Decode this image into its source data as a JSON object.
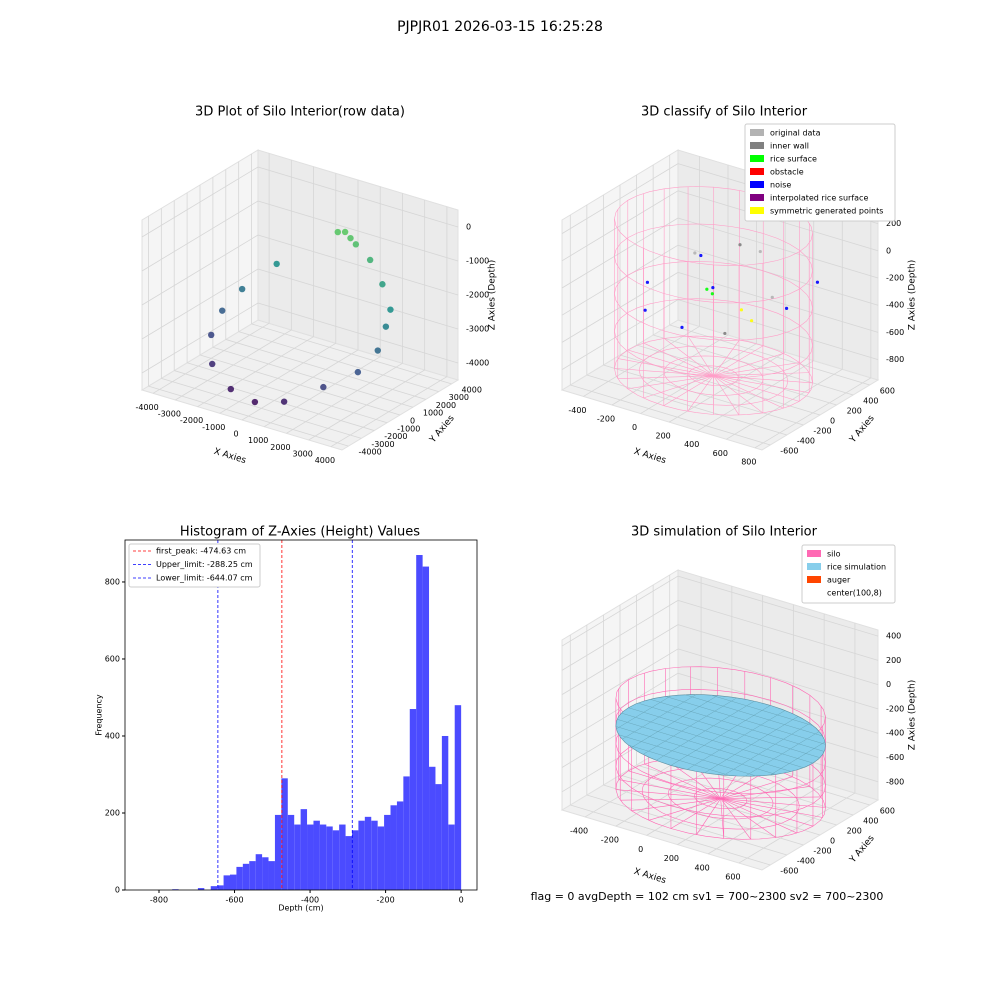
{
  "title": "PJPJR01 2026-03-15 16:25:28",
  "footer": "flag = 0     avgDepth = 102 cm  sv1 = 700~2300  sv2 = 700~2300",
  "chart_data": [
    {
      "type": "scatter3d",
      "title": "3D Plot of Silo Interior(row data)",
      "colormap": "viridis",
      "xlabel": "X Axies",
      "ylabel": "Y Axies",
      "zlabel": "Z Axies (Depth)",
      "xlim": [
        -4500,
        4500
      ],
      "ylim": [
        -4500,
        4500
      ],
      "zlim": [
        -4500,
        500
      ],
      "xticks": [
        -4000,
        -3000,
        -2000,
        -1000,
        0,
        1000,
        2000,
        3000,
        4000
      ],
      "yticks": [
        -4000,
        -3000,
        -2000,
        -1000,
        0,
        1000,
        2000,
        3000,
        4000
      ],
      "zticks": [
        -4000,
        -3000,
        -2000,
        -1000,
        0
      ],
      "series": [
        {
          "x": [
            0,
            300,
            -300,
            600,
            -2500,
            -3300,
            -3500,
            -3300,
            -2500,
            -1200,
            0,
            1200,
            2500,
            3300,
            3500,
            3400,
            3200,
            2200,
            1300
          ],
          "y": [
            3500,
            3400,
            3450,
            3300,
            2500,
            1200,
            0,
            -1200,
            -2500,
            -3300,
            -3500,
            -3300,
            -2500,
            -1200,
            0,
            800,
            1500,
            2600,
            3200
          ],
          "z": [
            -800,
            -900,
            -850,
            -1000,
            -2000,
            -2600,
            -3000,
            -3400,
            -3800,
            -4100,
            -4200,
            -4000,
            -3500,
            -3200,
            -2800,
            -2300,
            -2000,
            -1700,
            -1300
          ]
        }
      ]
    },
    {
      "type": "scatter3d",
      "title": "3D classify of Silo Interior",
      "xlabel": "X Axies",
      "ylabel": "Y Axies",
      "zlabel": "Z Axies (Depth)",
      "xlim": [
        -550,
        850
      ],
      "ylim": [
        -700,
        700
      ],
      "zlim": [
        -950,
        300
      ],
      "xticks": [
        -400,
        -200,
        0,
        200,
        400,
        600,
        800
      ],
      "yticks": [
        -600,
        -400,
        -200,
        0,
        200,
        400,
        600
      ],
      "zticks": [
        -800,
        -600,
        -400,
        -200,
        0,
        200
      ],
      "cylinder": {
        "color": "#ff9ec8",
        "center": [
          100,
          8
        ],
        "radius": 600,
        "zrange": [
          -900,
          200
        ]
      },
      "series": [
        {
          "name": "original data",
          "color": "#b3b3b3",
          "x": [
            -200,
            200,
            400
          ],
          "y": [
            300,
            400,
            200
          ],
          "z": [
            -200,
            -100,
            -300
          ]
        },
        {
          "name": "inner wall",
          "color": "#808080",
          "x": [
            0,
            300
          ],
          "y": [
            500,
            -200
          ],
          "z": [
            -150,
            -450
          ]
        },
        {
          "name": "rice surface",
          "color": "#00ff00",
          "x": [
            0,
            50
          ],
          "y": [
            100,
            80
          ],
          "z": [
            -330,
            -340
          ]
        },
        {
          "name": "obstacle",
          "color": "#ff0000",
          "x": [],
          "y": [],
          "z": []
        },
        {
          "name": "noise",
          "color": "#0000ff",
          "x": [
            -300,
            -200,
            0,
            100,
            500,
            600,
            -100
          ],
          "y": [
            -100,
            -300,
            -200,
            0,
            200,
            400,
            200
          ],
          "z": [
            -300,
            -400,
            -500,
            -250,
            -350,
            -200,
            -150
          ]
        },
        {
          "name": "interpolated rice surface",
          "color": "#800080",
          "x": [],
          "y": [],
          "z": []
        },
        {
          "name": "symmetric generated points",
          "color": "#ffff00",
          "x": [
            300,
            400
          ],
          "y": [
            0,
            -50
          ],
          "z": [
            -350,
            -380
          ]
        }
      ]
    },
    {
      "type": "histogram",
      "title": "Histogram of Z-Axies (Height) Values",
      "xlabel": "Depth (cm)",
      "ylabel": "Frequency",
      "color": "#4b4bff",
      "xlim": [
        -890,
        42
      ],
      "ylim": [
        0,
        909
      ],
      "xticks": [
        -800,
        -600,
        -400,
        -200,
        0
      ],
      "yticks": [
        0,
        200,
        400,
        600,
        800
      ],
      "bins": [
        -850,
        -833,
        -816,
        -799,
        -782,
        -765,
        -748,
        -731,
        -714,
        -697,
        -680,
        -663,
        -646,
        -629,
        -612,
        -595,
        -578,
        -561,
        -544,
        -527,
        -510,
        -493,
        -476,
        -459,
        -442,
        -425,
        -408,
        -391,
        -374,
        -357,
        -340,
        -323,
        -306,
        -289,
        -272,
        -255,
        -238,
        -221,
        -204,
        -187,
        -170,
        -153,
        -136,
        -119,
        -102,
        -85,
        -68,
        -51,
        -34,
        -17,
        0
      ],
      "values": [
        0,
        0,
        0,
        0,
        0,
        2,
        0,
        0,
        0,
        5,
        0,
        10,
        12,
        38,
        40,
        60,
        68,
        75,
        93,
        85,
        75,
        195,
        290,
        195,
        170,
        210,
        170,
        180,
        170,
        165,
        155,
        170,
        140,
        155,
        180,
        190,
        180,
        165,
        195,
        220,
        230,
        295,
        470,
        870,
        840,
        320,
        275,
        400,
        170,
        480
      ],
      "lines": [
        {
          "name": "first_peak: -474.63 cm",
          "value": -474.63,
          "color": "#ff0000"
        },
        {
          "name": "Upper_limit: -288.25 cm",
          "value": -288.25,
          "color": "#0000ff"
        },
        {
          "name": "Lower_limit: -644.07 cm",
          "value": -644.07,
          "color": "#0000ff"
        }
      ]
    },
    {
      "type": "silo3d",
      "title": "3D simulation of Silo Interior",
      "xlabel": "X Axies",
      "ylabel": "Y Axies",
      "zlabel": "Z Axies (Depth)",
      "xlim": [
        -550,
        750
      ],
      "ylim": [
        -700,
        700
      ],
      "zlim": [
        -950,
        450
      ],
      "xticks": [
        -400,
        -200,
        0,
        200,
        400,
        600
      ],
      "yticks": [
        -600,
        -400,
        -200,
        0,
        200,
        400,
        600
      ],
      "zticks": [
        -800,
        -600,
        -400,
        -200,
        0,
        200,
        400
      ],
      "series": [
        {
          "name": "silo",
          "color": "#ff69b4",
          "center": [
            100,
            8
          ],
          "radius": 600,
          "zrange": [
            -900,
            -150
          ]
        },
        {
          "name": "rice simulation",
          "color": "#87ceeb",
          "level": -380
        },
        {
          "name": "auger",
          "color": "#ff4500"
        },
        {
          "name": "center(100,8)",
          "color": "#ffffff"
        }
      ]
    }
  ]
}
